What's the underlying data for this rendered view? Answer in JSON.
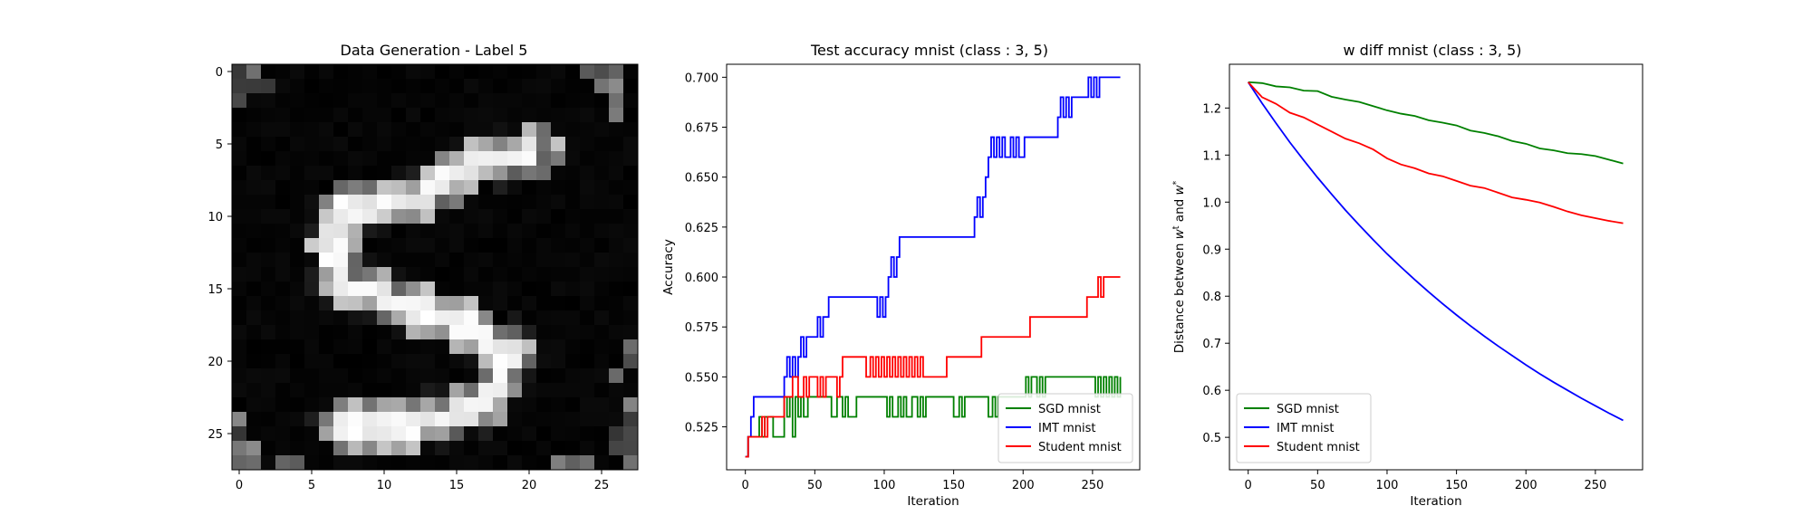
{
  "chart_data": [
    {
      "type": "heatmap",
      "title": "Data Generation - Label 5",
      "colormap": "gray",
      "xlim": [
        -0.5,
        27.5
      ],
      "ylim": [
        27.5,
        -0.5
      ],
      "xticks": [
        0,
        5,
        10,
        15,
        20,
        25
      ],
      "yticks": [
        0,
        5,
        10,
        15,
        20,
        25
      ],
      "grid": false,
      "image_size": [
        28,
        28
      ],
      "description_of_values": "pixel intensities 0-1 of a generated handwritten digit 5"
    },
    {
      "type": "line",
      "title": "Test accuracy mnist (class : 3, 5)",
      "xlabel": "Iteration",
      "ylabel": "Accuracy",
      "xlim": [
        -13.5,
        284
      ],
      "ylim": [
        0.5035,
        0.7065
      ],
      "xticks": [
        0,
        50,
        100,
        150,
        200,
        250
      ],
      "yticks": [
        0.525,
        0.55,
        0.575,
        0.6,
        0.625,
        0.65,
        0.675,
        0.7
      ],
      "ytick_labels": [
        "0.525",
        "0.550",
        "0.575",
        "0.600",
        "0.625",
        "0.650",
        "0.675",
        "0.700"
      ],
      "grid": false,
      "legend": "bottom-right",
      "series": [
        {
          "name": "SGD mnist",
          "color": "#008000",
          "step": true,
          "x": [
            0,
            2,
            8,
            10,
            12,
            14,
            20,
            28,
            30,
            32,
            34,
            36,
            38,
            40,
            42,
            45,
            50,
            62,
            66,
            70,
            72,
            74,
            80,
            100,
            102,
            104,
            106,
            110,
            112,
            114,
            116,
            120,
            124,
            126,
            128,
            130,
            150,
            154,
            156,
            158,
            160,
            175,
            178,
            180,
            182,
            200,
            202,
            204,
            206,
            210,
            212,
            214,
            216,
            250,
            252,
            254,
            256,
            258,
            260,
            262,
            264,
            266,
            268,
            270
          ],
          "values": [
            0.51,
            0.52,
            0.52,
            0.53,
            0.52,
            0.53,
            0.52,
            0.54,
            0.53,
            0.54,
            0.52,
            0.54,
            0.53,
            0.54,
            0.53,
            0.54,
            0.54,
            0.53,
            0.54,
            0.53,
            0.54,
            0.53,
            0.54,
            0.54,
            0.53,
            0.54,
            0.53,
            0.54,
            0.53,
            0.54,
            0.53,
            0.54,
            0.53,
            0.54,
            0.53,
            0.54,
            0.53,
            0.54,
            0.53,
            0.54,
            0.54,
            0.53,
            0.54,
            0.53,
            0.54,
            0.54,
            0.55,
            0.54,
            0.55,
            0.54,
            0.55,
            0.54,
            0.55,
            0.55,
            0.54,
            0.55,
            0.54,
            0.55,
            0.54,
            0.55,
            0.54,
            0.55,
            0.54,
            0.55
          ]
        },
        {
          "name": "IMT mnist",
          "color": "#0000ff",
          "step": true,
          "x": [
            0,
            2,
            4,
            6,
            8,
            28,
            30,
            32,
            34,
            36,
            38,
            40,
            42,
            44,
            46,
            48,
            50,
            52,
            54,
            56,
            58,
            60,
            62,
            64,
            66,
            68,
            70,
            95,
            97,
            99,
            101,
            103,
            105,
            107,
            109,
            111,
            113,
            115,
            140,
            165,
            167,
            169,
            171,
            173,
            175,
            177,
            179,
            181,
            183,
            185,
            187,
            189,
            191,
            193,
            195,
            197,
            199,
            201,
            210,
            215,
            225,
            227,
            229,
            231,
            233,
            235,
            245,
            247,
            249,
            251,
            253,
            255,
            257,
            270
          ],
          "values": [
            0.51,
            0.52,
            0.53,
            0.54,
            0.54,
            0.55,
            0.56,
            0.55,
            0.56,
            0.55,
            0.56,
            0.57,
            0.56,
            0.57,
            0.57,
            0.57,
            0.57,
            0.58,
            0.57,
            0.58,
            0.58,
            0.59,
            0.59,
            0.59,
            0.59,
            0.59,
            0.59,
            0.58,
            0.59,
            0.58,
            0.59,
            0.6,
            0.61,
            0.6,
            0.61,
            0.62,
            0.62,
            0.62,
            0.62,
            0.63,
            0.64,
            0.63,
            0.64,
            0.65,
            0.66,
            0.67,
            0.66,
            0.67,
            0.66,
            0.67,
            0.66,
            0.66,
            0.67,
            0.66,
            0.67,
            0.66,
            0.66,
            0.67,
            0.67,
            0.67,
            0.68,
            0.69,
            0.68,
            0.69,
            0.68,
            0.69,
            0.69,
            0.7,
            0.69,
            0.7,
            0.69,
            0.7,
            0.7,
            0.7
          ]
        },
        {
          "name": "Student mnist",
          "color": "#ff0000",
          "step": true,
          "x": [
            0,
            2,
            8,
            12,
            14,
            16,
            20,
            28,
            34,
            38,
            42,
            44,
            46,
            52,
            54,
            56,
            58,
            62,
            66,
            68,
            70,
            73,
            75,
            77,
            79,
            81,
            83,
            85,
            87,
            90,
            92,
            94,
            96,
            98,
            100,
            102,
            104,
            106,
            108,
            110,
            112,
            114,
            116,
            118,
            120,
            122,
            124,
            126,
            128,
            145,
            170,
            172,
            174,
            176,
            178,
            180,
            182,
            184,
            186,
            205,
            230,
            232,
            234,
            236,
            238,
            240,
            242,
            244,
            246,
            248,
            250,
            252,
            254,
            256,
            258,
            270
          ],
          "values": [
            0.51,
            0.52,
            0.52,
            0.53,
            0.52,
            0.53,
            0.53,
            0.54,
            0.55,
            0.54,
            0.55,
            0.54,
            0.55,
            0.54,
            0.55,
            0.54,
            0.55,
            0.55,
            0.54,
            0.55,
            0.56,
            0.56,
            0.56,
            0.56,
            0.56,
            0.56,
            0.56,
            0.56,
            0.55,
            0.56,
            0.55,
            0.56,
            0.55,
            0.56,
            0.55,
            0.56,
            0.55,
            0.56,
            0.55,
            0.56,
            0.55,
            0.56,
            0.55,
            0.56,
            0.55,
            0.56,
            0.55,
            0.56,
            0.55,
            0.56,
            0.57,
            0.57,
            0.57,
            0.57,
            0.57,
            0.57,
            0.57,
            0.57,
            0.57,
            0.58,
            0.58,
            0.58,
            0.58,
            0.58,
            0.58,
            0.58,
            0.58,
            0.58,
            0.59,
            0.59,
            0.59,
            0.59,
            0.6,
            0.59,
            0.6,
            0.6
          ]
        }
      ]
    },
    {
      "type": "line",
      "title": "w diff mnist (class : 3, 5)",
      "xlabel": "Iteration",
      "ylabel": "Distance between w^t and w^*",
      "xlim": [
        -13.5,
        284
      ],
      "ylim": [
        0.431,
        1.293
      ],
      "xticks": [
        0,
        50,
        100,
        150,
        200,
        250
      ],
      "yticks": [
        0.5,
        0.6,
        0.7,
        0.8,
        0.9,
        1.0,
        1.1,
        1.2
      ],
      "grid": false,
      "legend": "bottom-left",
      "series": [
        {
          "name": "SGD mnist",
          "color": "#008000",
          "x": [
            0,
            10,
            20,
            30,
            40,
            50,
            60,
            70,
            80,
            90,
            100,
            110,
            120,
            130,
            140,
            150,
            160,
            170,
            180,
            190,
            200,
            210,
            220,
            230,
            240,
            250,
            260,
            270
          ],
          "values": [
            1.255,
            1.253,
            1.246,
            1.244,
            1.237,
            1.236,
            1.224,
            1.218,
            1.213,
            1.204,
            1.195,
            1.188,
            1.183,
            1.174,
            1.169,
            1.163,
            1.152,
            1.147,
            1.14,
            1.13,
            1.124,
            1.114,
            1.11,
            1.104,
            1.102,
            1.098,
            1.09,
            1.082
          ]
        },
        {
          "name": "IMT mnist",
          "color": "#0000ff",
          "x": [
            0,
            10,
            20,
            30,
            40,
            50,
            60,
            70,
            80,
            90,
            100,
            110,
            120,
            130,
            140,
            150,
            160,
            170,
            180,
            190,
            200,
            210,
            220,
            230,
            240,
            250,
            260,
            270
          ],
          "values": [
            1.255,
            1.21,
            1.168,
            1.127,
            1.089,
            1.052,
            1.017,
            0.983,
            0.951,
            0.92,
            0.89,
            0.862,
            0.835,
            0.809,
            0.784,
            0.76,
            0.737,
            0.715,
            0.694,
            0.674,
            0.654,
            0.635,
            0.617,
            0.6,
            0.583,
            0.567,
            0.551,
            0.536
          ]
        },
        {
          "name": "Student mnist",
          "color": "#ff0000",
          "x": [
            0,
            10,
            20,
            30,
            40,
            50,
            60,
            70,
            80,
            90,
            100,
            110,
            120,
            130,
            140,
            150,
            160,
            170,
            180,
            190,
            200,
            210,
            220,
            230,
            240,
            250,
            260,
            270
          ],
          "values": [
            1.255,
            1.223,
            1.209,
            1.19,
            1.18,
            1.165,
            1.15,
            1.135,
            1.125,
            1.112,
            1.093,
            1.08,
            1.072,
            1.061,
            1.055,
            1.045,
            1.035,
            1.03,
            1.02,
            1.01,
            1.005,
            0.999,
            0.99,
            0.98,
            0.972,
            0.966,
            0.96,
            0.955
          ]
        }
      ]
    }
  ]
}
